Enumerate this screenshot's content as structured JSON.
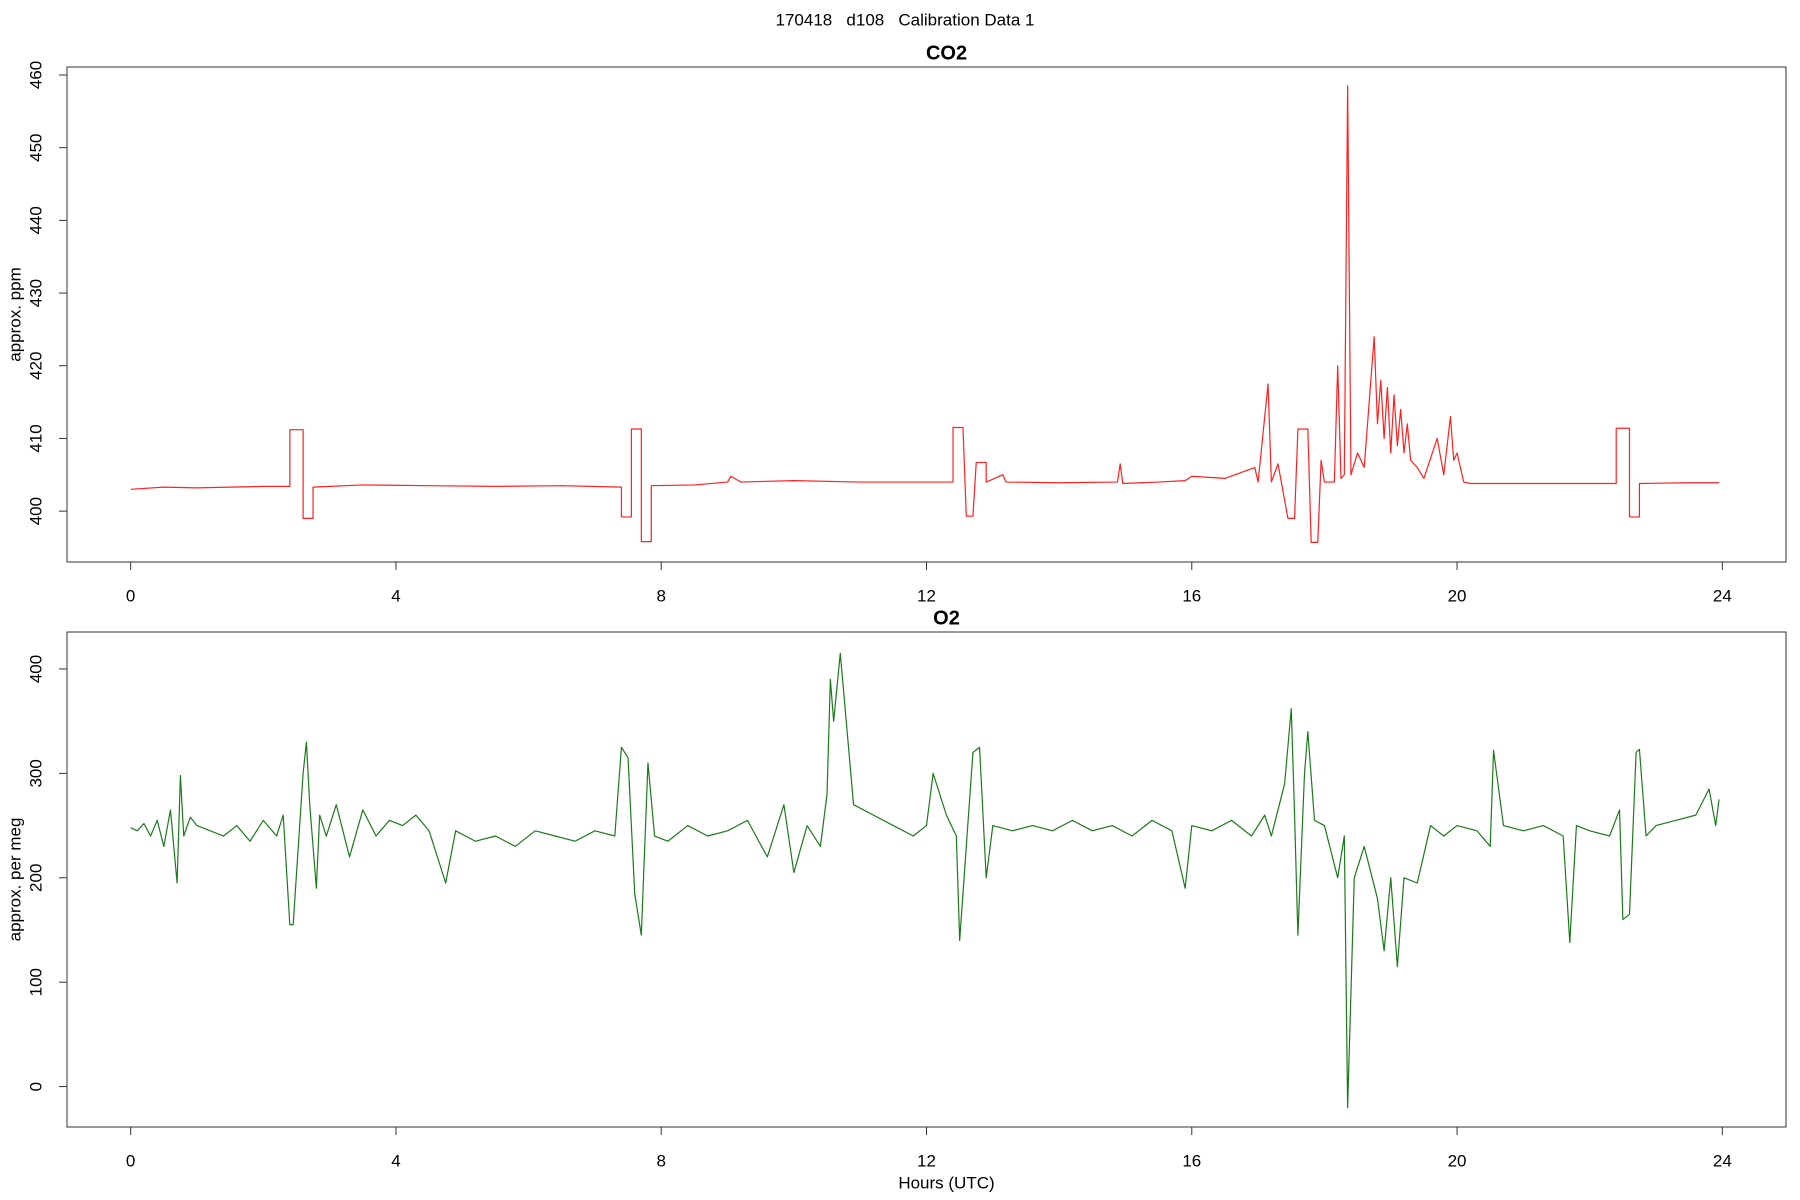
{
  "title": "170418   d108   Calibration Data 1",
  "chart_data": [
    {
      "type": "line",
      "title": "CO2",
      "ylabel": "approx. ppm",
      "color": "#ff2020",
      "xlim": [
        -0.96,
        24.96
      ],
      "xticks": [
        0,
        4,
        8,
        12,
        16,
        20,
        24
      ],
      "ylim": [
        393,
        461.1
      ],
      "yticks": [
        400,
        410,
        420,
        430,
        440,
        450,
        460
      ],
      "x": [
        0,
        0.5,
        1,
        1.5,
        2,
        2.4,
        2.4,
        2.6,
        2.6,
        2.75,
        2.75,
        3.5,
        4.5,
        5.5,
        6.5,
        7.4,
        7.4,
        7.55,
        7.55,
        7.7,
        7.7,
        7.85,
        7.85,
        8.5,
        9.0,
        9.05,
        9.2,
        10,
        11,
        12.4,
        12.4,
        12.55,
        12.6,
        12.7,
        12.75,
        12.9,
        12.9,
        13.15,
        13.2,
        14,
        14.88,
        14.92,
        14.96,
        15.5,
        15.9,
        16,
        16.5,
        16.95,
        17.0,
        17.15,
        17.2,
        17.3,
        17.35,
        17.45,
        17.55,
        17.6,
        17.75,
        17.8,
        17.9,
        17.95,
        18.0,
        18.15,
        18.2,
        18.25,
        18.3,
        18.35,
        18.4,
        18.5,
        18.6,
        18.75,
        18.8,
        18.85,
        18.9,
        18.95,
        19.0,
        19.05,
        19.1,
        19.15,
        19.2,
        19.25,
        19.3,
        19.4,
        19.5,
        19.7,
        19.8,
        19.9,
        19.95,
        20.0,
        20.1,
        20.2,
        21,
        22.4,
        22.4,
        22.6,
        22.6,
        22.75,
        22.75,
        23.5,
        23.95
      ],
      "values": [
        403,
        403.3,
        403.2,
        403.3,
        403.4,
        403.4,
        411.2,
        411.2,
        399,
        399,
        403.3,
        403.6,
        403.5,
        403.4,
        403.5,
        403.3,
        399.2,
        399.2,
        411.3,
        411.3,
        395.8,
        395.8,
        403.5,
        403.6,
        404,
        404.8,
        404,
        404.2,
        404,
        404,
        411.5,
        411.5,
        399.3,
        399.3,
        406.7,
        406.7,
        404,
        405,
        404,
        403.9,
        404,
        406.5,
        403.8,
        404,
        404.2,
        404.8,
        404.5,
        406,
        404,
        417.5,
        404,
        406.5,
        404,
        399,
        399,
        411.3,
        411.3,
        395.7,
        395.7,
        407,
        404,
        404,
        420,
        404.5,
        405,
        458.5,
        405,
        408,
        406,
        424,
        412,
        418,
        410,
        417,
        408,
        416,
        409,
        414,
        408,
        412,
        407,
        406,
        404.5,
        410,
        405,
        413,
        407,
        408,
        404,
        403.8,
        403.8,
        403.8,
        411.4,
        411.4,
        399.2,
        399.2,
        403.8,
        403.9,
        403.9
      ]
    },
    {
      "type": "line",
      "title": "O2",
      "ylabel": "approx. per meg",
      "xlabel": "Hours (UTC)",
      "color": "#1c7a1c",
      "xlim": [
        -0.96,
        24.96
      ],
      "xticks": [
        0,
        4,
        8,
        12,
        16,
        20,
        24
      ],
      "ylim": [
        -38.7,
        435.4
      ],
      "yticks": [
        0,
        100,
        200,
        300,
        400
      ],
      "x": [
        0,
        0.1,
        0.2,
        0.3,
        0.4,
        0.5,
        0.6,
        0.7,
        0.75,
        0.8,
        0.9,
        1.0,
        1.2,
        1.4,
        1.6,
        1.8,
        2.0,
        2.2,
        2.3,
        2.4,
        2.45,
        2.6,
        2.65,
        2.7,
        2.8,
        2.85,
        2.95,
        3.1,
        3.3,
        3.5,
        3.7,
        3.9,
        4.1,
        4.3,
        4.5,
        4.75,
        4.9,
        5.2,
        5.5,
        5.8,
        6.1,
        6.4,
        6.7,
        7.0,
        7.3,
        7.4,
        7.5,
        7.6,
        7.7,
        7.8,
        7.9,
        8.1,
        8.4,
        8.7,
        9.0,
        9.3,
        9.6,
        9.85,
        10.0,
        10.2,
        10.4,
        10.5,
        10.55,
        10.6,
        10.7,
        10.9,
        11.2,
        11.5,
        11.8,
        12.0,
        12.1,
        12.3,
        12.45,
        12.5,
        12.6,
        12.7,
        12.8,
        12.9,
        13.0,
        13.3,
        13.6,
        13.9,
        14.2,
        14.5,
        14.8,
        15.1,
        15.4,
        15.7,
        15.9,
        16.0,
        16.3,
        16.6,
        16.9,
        17.1,
        17.2,
        17.4,
        17.5,
        17.55,
        17.6,
        17.7,
        17.75,
        17.85,
        18.0,
        18.2,
        18.3,
        18.35,
        18.45,
        18.6,
        18.8,
        18.9,
        19.0,
        19.1,
        19.2,
        19.4,
        19.6,
        19.8,
        20.0,
        20.3,
        20.5,
        20.55,
        20.7,
        21.0,
        21.3,
        21.6,
        21.7,
        21.8,
        22.0,
        22.3,
        22.45,
        22.5,
        22.6,
        22.7,
        22.75,
        22.85,
        23.0,
        23.3,
        23.6,
        23.8,
        23.9,
        23.95
      ],
      "values": [
        248,
        245,
        252,
        240,
        255,
        230,
        265,
        195,
        298,
        240,
        258,
        250,
        245,
        240,
        250,
        235,
        255,
        240,
        260,
        155,
        155,
        300,
        330,
        270,
        190,
        260,
        240,
        270,
        220,
        265,
        240,
        255,
        250,
        260,
        245,
        195,
        245,
        235,
        240,
        230,
        245,
        240,
        235,
        245,
        240,
        325,
        315,
        185,
        145,
        310,
        240,
        235,
        250,
        240,
        245,
        255,
        220,
        270,
        205,
        250,
        230,
        280,
        390,
        350,
        415,
        270,
        260,
        250,
        240,
        250,
        300,
        260,
        240,
        140,
        230,
        320,
        325,
        200,
        250,
        245,
        250,
        245,
        255,
        245,
        250,
        240,
        255,
        245,
        190,
        250,
        245,
        255,
        240,
        260,
        240,
        290,
        362,
        260,
        145,
        300,
        340,
        255,
        250,
        200,
        240,
        -20,
        200,
        230,
        180,
        130,
        200,
        115,
        200,
        195,
        250,
        240,
        250,
        245,
        230,
        322,
        250,
        245,
        250,
        240,
        138,
        250,
        245,
        240,
        265,
        160,
        165,
        320,
        323,
        240,
        250,
        255,
        260,
        285,
        250,
        275
      ]
    }
  ]
}
